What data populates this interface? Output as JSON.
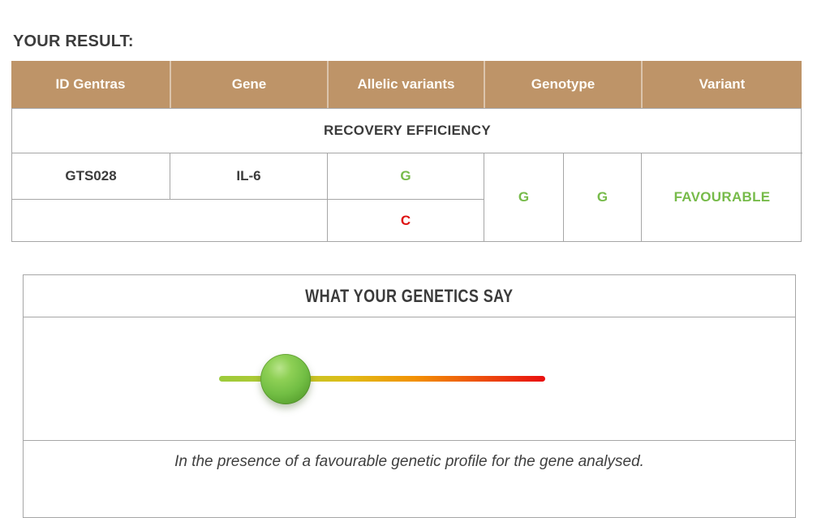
{
  "page": {
    "title": "YOUR RESULT:"
  },
  "colors": {
    "header_bg": "#BE9468",
    "green": "#77BB4A",
    "red": "#DE1010",
    "border": "#A6A6A6",
    "text_dark": "#3B3B3B"
  },
  "result_table": {
    "headers": [
      "ID Gentras",
      "Gene",
      "Allelic variants",
      "Genotype",
      "Variant"
    ],
    "section_title": "RECOVERY EFFICIENCY",
    "row": {
      "id_gentras": "GTS028",
      "gene": "IL-6",
      "allelic_variant_1": "G",
      "allelic_variant_2": "C",
      "genotype_1": "G",
      "genotype_2": "G",
      "variant": "FAVOURABLE"
    }
  },
  "genetics_panel": {
    "title": "WHAT YOUR GENETICS SAY",
    "slider": {
      "position_percent": 20.5,
      "track_colors": [
        "#9CCB3C",
        "#B9C92F",
        "#E0BC16",
        "#F29104",
        "#ED500D",
        "#E90F0F"
      ],
      "knob_color": "#72BE44"
    },
    "caption": "In the presence of a favourable genetic profile for the gene analysed."
  }
}
